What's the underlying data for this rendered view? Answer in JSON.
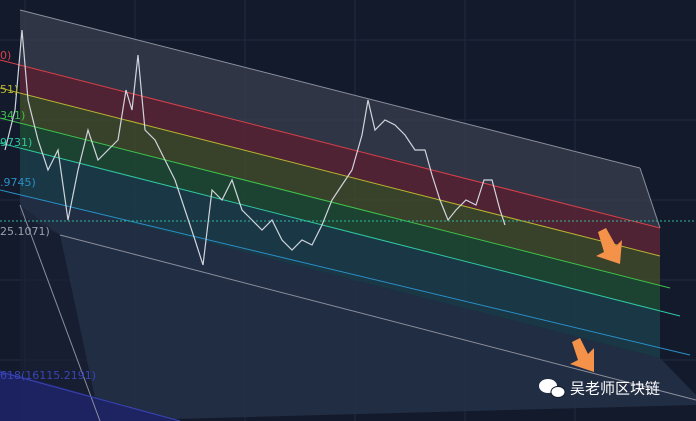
{
  "fib_labels": [
    "0)",
    "51)",
    "341)",
    "9731)",
    ".9745)",
    "25.1071)",
    "618(16115.2191)"
  ],
  "watermark": "吴老师区块链"
}
